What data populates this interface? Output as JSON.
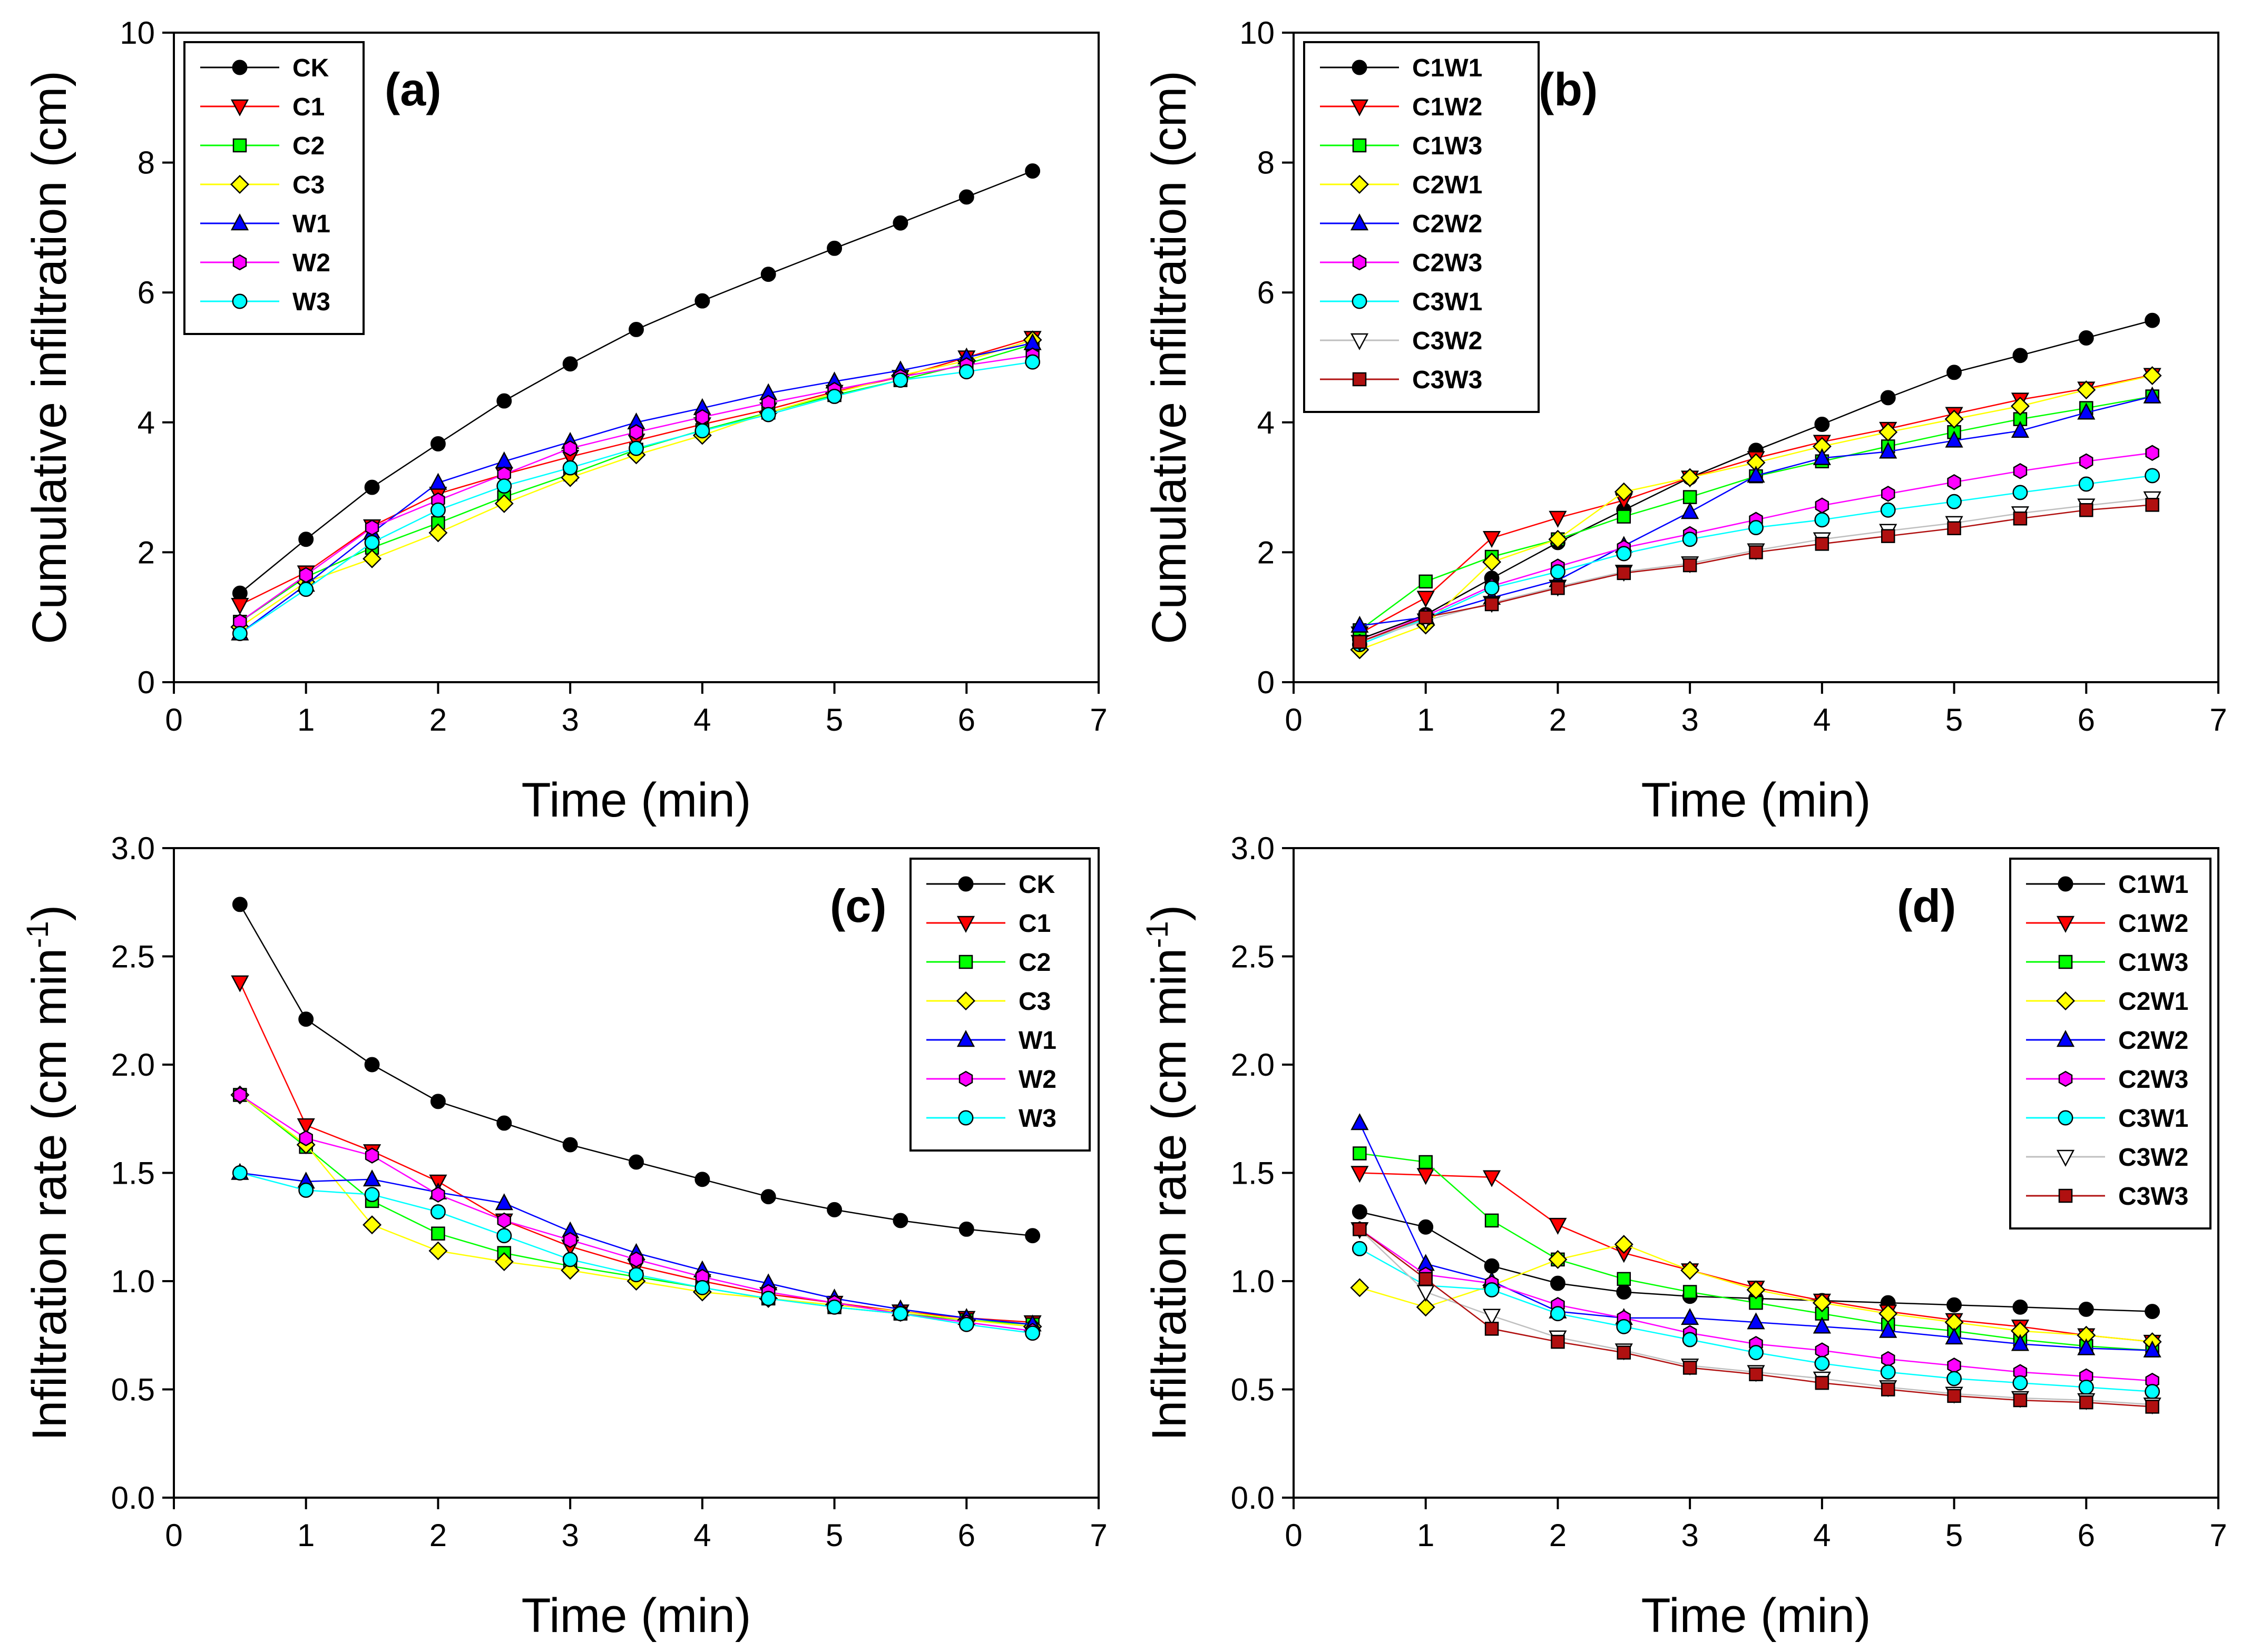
{
  "chart_data": [
    {
      "id": "a",
      "type": "line",
      "panel_label": "(a)",
      "xlabel": "Time (min)",
      "ylabel": "Cumulative infiltration (cm)",
      "ylabel_sup": "",
      "ylabel_tail": "",
      "xlim": [
        0,
        7
      ],
      "ylim": [
        0,
        10
      ],
      "xticks": [
        "0",
        "1",
        "2",
        "3",
        "4",
        "5",
        "6",
        "7"
      ],
      "yticks": [
        "0",
        "2",
        "4",
        "6",
        "8",
        "10"
      ],
      "legend_position": "top-left",
      "x": [
        0.5,
        1,
        1.5,
        2,
        2.5,
        3,
        3.5,
        4,
        4.5,
        5,
        5.5,
        6,
        6.5
      ],
      "series": [
        {
          "name": "CK",
          "color": "#000000",
          "marker": "circle",
          "values": [
            1.37,
            2.2,
            3.0,
            3.67,
            4.33,
            4.9,
            5.43,
            5.87,
            6.28,
            6.68,
            7.07,
            7.47,
            7.87
          ]
        },
        {
          "name": "C1",
          "color": "#ff0000",
          "marker": "triangle-down",
          "values": [
            1.19,
            1.69,
            2.4,
            2.9,
            3.2,
            3.47,
            3.72,
            3.97,
            4.2,
            4.47,
            4.7,
            5.0,
            5.3
          ]
        },
        {
          "name": "C2",
          "color": "#00ff00",
          "marker": "square",
          "values": [
            0.93,
            1.62,
            2.07,
            2.45,
            2.85,
            3.2,
            3.58,
            3.88,
            4.15,
            4.42,
            4.65,
            4.9,
            5.2
          ]
        },
        {
          "name": "C3",
          "color": "#ffff00",
          "marker": "diamond",
          "values": [
            0.85,
            1.54,
            1.9,
            2.3,
            2.75,
            3.15,
            3.5,
            3.8,
            4.15,
            4.45,
            4.72,
            4.95,
            5.27
          ]
        },
        {
          "name": "W1",
          "color": "#0000ff",
          "marker": "triangle-up",
          "values": [
            0.75,
            1.5,
            2.3,
            3.07,
            3.4,
            3.7,
            4.0,
            4.22,
            4.45,
            4.63,
            4.8,
            5.0,
            5.22
          ]
        },
        {
          "name": "W2",
          "color": "#ff00ff",
          "marker": "hexagon",
          "values": [
            0.93,
            1.65,
            2.38,
            2.8,
            3.2,
            3.6,
            3.85,
            4.08,
            4.3,
            4.5,
            4.7,
            4.88,
            5.03
          ]
        },
        {
          "name": "W3",
          "color": "#00ffff",
          "marker": "circle",
          "values": [
            0.75,
            1.43,
            2.15,
            2.65,
            3.02,
            3.3,
            3.6,
            3.87,
            4.12,
            4.4,
            4.65,
            4.78,
            4.93
          ]
        }
      ]
    },
    {
      "id": "b",
      "type": "line",
      "panel_label": "(b)",
      "xlabel": "Time (min)",
      "ylabel": "Cumulative infiltration (cm)",
      "ylabel_sup": "",
      "ylabel_tail": "",
      "xlim": [
        0,
        7
      ],
      "ylim": [
        0,
        10
      ],
      "xticks": [
        "0",
        "1",
        "2",
        "3",
        "4",
        "5",
        "6",
        "7"
      ],
      "yticks": [
        "0",
        "2",
        "4",
        "6",
        "8",
        "10"
      ],
      "legend_position": "top-left",
      "x": [
        0.5,
        1,
        1.5,
        2,
        2.5,
        3,
        3.5,
        4,
        4.5,
        5,
        5.5,
        6,
        6.5
      ],
      "series": [
        {
          "name": "C1W1",
          "color": "#000000",
          "marker": "circle",
          "values": [
            0.66,
            1.04,
            1.6,
            2.15,
            2.65,
            3.15,
            3.57,
            3.97,
            4.38,
            4.77,
            5.03,
            5.3,
            5.57
          ]
        },
        {
          "name": "C1W2",
          "color": "#ff0000",
          "marker": "triangle-down",
          "values": [
            0.75,
            1.3,
            2.22,
            2.53,
            2.8,
            3.15,
            3.45,
            3.7,
            3.9,
            4.13,
            4.35,
            4.52,
            4.73
          ]
        },
        {
          "name": "C1W3",
          "color": "#00ff00",
          "marker": "square",
          "values": [
            0.8,
            1.55,
            1.93,
            2.2,
            2.55,
            2.85,
            3.17,
            3.4,
            3.63,
            3.85,
            4.05,
            4.22,
            4.4
          ]
        },
        {
          "name": "C2W1",
          "color": "#ffff00",
          "marker": "diamond",
          "values": [
            0.5,
            0.88,
            1.85,
            2.2,
            2.93,
            3.15,
            3.38,
            3.63,
            3.85,
            4.05,
            4.25,
            4.5,
            4.72
          ]
        },
        {
          "name": "C2W2",
          "color": "#0000ff",
          "marker": "triangle-up",
          "values": [
            0.87,
            1.0,
            1.3,
            1.57,
            2.1,
            2.62,
            3.18,
            3.45,
            3.55,
            3.72,
            3.87,
            4.15,
            4.4
          ]
        },
        {
          "name": "C2W3",
          "color": "#ff00ff",
          "marker": "hexagon",
          "values": [
            0.62,
            1.02,
            1.48,
            1.78,
            2.07,
            2.28,
            2.5,
            2.72,
            2.9,
            3.08,
            3.25,
            3.4,
            3.53
          ]
        },
        {
          "name": "C3W1",
          "color": "#00ffff",
          "marker": "circle",
          "values": [
            0.58,
            0.98,
            1.45,
            1.7,
            1.98,
            2.2,
            2.38,
            2.5,
            2.65,
            2.78,
            2.92,
            3.05,
            3.18
          ]
        },
        {
          "name": "C3W2",
          "color": "#ffffff",
          "marker": "triangle-down",
          "values": [
            0.62,
            0.95,
            1.22,
            1.47,
            1.7,
            1.83,
            2.03,
            2.2,
            2.33,
            2.45,
            2.6,
            2.72,
            2.83
          ]
        },
        {
          "name": "C3W3",
          "color": "#b01010",
          "marker": "square",
          "values": [
            0.62,
            1.0,
            1.2,
            1.45,
            1.68,
            1.8,
            2.0,
            2.13,
            2.25,
            2.37,
            2.52,
            2.65,
            2.73
          ]
        }
      ]
    },
    {
      "id": "c",
      "type": "line",
      "panel_label": "(c)",
      "xlabel": "Time (min)",
      "ylabel": "Infiltration rate (cm min",
      "ylabel_sup": "-1",
      "ylabel_tail": ")",
      "xlim": [
        0,
        7
      ],
      "ylim": [
        0,
        3
      ],
      "xticks": [
        "0",
        "1",
        "2",
        "3",
        "4",
        "5",
        "6",
        "7"
      ],
      "yticks": [
        "0.0",
        "0.5",
        "1.0",
        "1.5",
        "2.0",
        "2.5",
        "3.0"
      ],
      "legend_position": "top-right",
      "x": [
        0.5,
        1,
        1.5,
        2,
        2.5,
        3,
        3.5,
        4,
        4.5,
        5,
        5.5,
        6,
        6.5
      ],
      "series": [
        {
          "name": "CK",
          "color": "#000000",
          "marker": "circle",
          "values": [
            2.74,
            2.21,
            2.0,
            1.83,
            1.73,
            1.63,
            1.55,
            1.47,
            1.39,
            1.33,
            1.28,
            1.24,
            1.21
          ]
        },
        {
          "name": "C1",
          "color": "#ff0000",
          "marker": "triangle-down",
          "values": [
            2.38,
            1.72,
            1.6,
            1.46,
            1.28,
            1.16,
            1.07,
            1.0,
            0.94,
            0.9,
            0.86,
            0.83,
            0.81
          ]
        },
        {
          "name": "C2",
          "color": "#00ff00",
          "marker": "square",
          "values": [
            1.86,
            1.62,
            1.37,
            1.22,
            1.13,
            1.07,
            1.02,
            0.97,
            0.92,
            0.88,
            0.85,
            0.82,
            0.8
          ]
        },
        {
          "name": "C3",
          "color": "#ffff00",
          "marker": "diamond",
          "values": [
            1.86,
            1.63,
            1.26,
            1.14,
            1.09,
            1.05,
            1.0,
            0.95,
            0.92,
            0.89,
            0.86,
            0.82,
            0.79
          ]
        },
        {
          "name": "W1",
          "color": "#0000ff",
          "marker": "triangle-up",
          "values": [
            1.5,
            1.46,
            1.47,
            1.41,
            1.36,
            1.23,
            1.13,
            1.05,
            0.99,
            0.92,
            0.87,
            0.83,
            0.8
          ]
        },
        {
          "name": "W2",
          "color": "#ff00ff",
          "marker": "hexagon",
          "values": [
            1.86,
            1.66,
            1.58,
            1.4,
            1.28,
            1.19,
            1.1,
            1.02,
            0.95,
            0.9,
            0.85,
            0.81,
            0.77
          ]
        },
        {
          "name": "W3",
          "color": "#00ffff",
          "marker": "circle",
          "values": [
            1.5,
            1.42,
            1.4,
            1.32,
            1.21,
            1.1,
            1.03,
            0.97,
            0.92,
            0.88,
            0.85,
            0.8,
            0.76
          ]
        }
      ]
    },
    {
      "id": "d",
      "type": "line",
      "panel_label": "(d)",
      "xlabel": "Time (min)",
      "ylabel": "Infiltration rate (cm min",
      "ylabel_sup": "-1",
      "ylabel_tail": ")",
      "xlim": [
        0,
        7
      ],
      "ylim": [
        0,
        3
      ],
      "xticks": [
        "0",
        "1",
        "2",
        "3",
        "4",
        "5",
        "6",
        "7"
      ],
      "yticks": [
        "0.0",
        "0.5",
        "1.0",
        "1.5",
        "2.0",
        "2.5",
        "3.0"
      ],
      "legend_position": "top-right",
      "x": [
        0.5,
        1,
        1.5,
        2,
        2.5,
        3,
        3.5,
        4,
        4.5,
        5,
        5.5,
        6,
        6.5
      ],
      "series": [
        {
          "name": "C1W1",
          "color": "#000000",
          "marker": "circle",
          "values": [
            1.32,
            1.25,
            1.07,
            0.99,
            0.95,
            0.93,
            0.92,
            0.91,
            0.9,
            0.89,
            0.88,
            0.87,
            0.86
          ]
        },
        {
          "name": "C1W2",
          "color": "#ff0000",
          "marker": "triangle-down",
          "values": [
            1.5,
            1.49,
            1.48,
            1.26,
            1.13,
            1.05,
            0.97,
            0.91,
            0.86,
            0.82,
            0.79,
            0.75,
            0.72
          ]
        },
        {
          "name": "C1W3",
          "color": "#00ff00",
          "marker": "square",
          "values": [
            1.59,
            1.55,
            1.28,
            1.1,
            1.01,
            0.95,
            0.9,
            0.85,
            0.8,
            0.77,
            0.73,
            0.7,
            0.68
          ]
        },
        {
          "name": "C2W1",
          "color": "#ffff00",
          "marker": "diamond",
          "values": [
            0.97,
            0.88,
            0.98,
            1.1,
            1.17,
            1.05,
            0.96,
            0.9,
            0.85,
            0.81,
            0.77,
            0.75,
            0.72
          ]
        },
        {
          "name": "C2W2",
          "color": "#0000ff",
          "marker": "triangle-up",
          "values": [
            1.73,
            1.08,
            1.0,
            0.86,
            0.83,
            0.83,
            0.81,
            0.79,
            0.77,
            0.74,
            0.71,
            0.69,
            0.68
          ]
        },
        {
          "name": "C2W3",
          "color": "#ff00ff",
          "marker": "hexagon",
          "values": [
            1.24,
            1.03,
            0.99,
            0.89,
            0.83,
            0.76,
            0.71,
            0.68,
            0.64,
            0.61,
            0.58,
            0.56,
            0.54
          ]
        },
        {
          "name": "C3W1",
          "color": "#00ffff",
          "marker": "circle",
          "values": [
            1.15,
            0.98,
            0.96,
            0.85,
            0.79,
            0.73,
            0.67,
            0.62,
            0.58,
            0.55,
            0.53,
            0.51,
            0.49
          ]
        },
        {
          "name": "C3W2",
          "color": "#ffffff",
          "marker": "triangle-down",
          "values": [
            1.24,
            0.95,
            0.84,
            0.74,
            0.68,
            0.61,
            0.58,
            0.55,
            0.51,
            0.48,
            0.46,
            0.45,
            0.43
          ]
        },
        {
          "name": "C3W3",
          "color": "#b01010",
          "marker": "square",
          "values": [
            1.24,
            1.01,
            0.78,
            0.72,
            0.67,
            0.6,
            0.57,
            0.53,
            0.5,
            0.47,
            0.45,
            0.44,
            0.42
          ]
        }
      ]
    }
  ]
}
